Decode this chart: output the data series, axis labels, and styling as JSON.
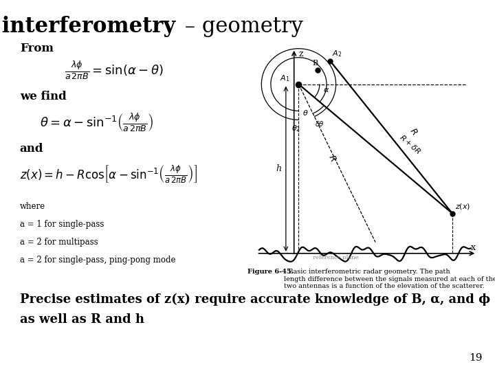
{
  "title_main": "Radar interferometry",
  "title_dash": " – ",
  "title_sub": "geometry",
  "bg_color": "#ffffff",
  "text_color": "#000000",
  "from_label": "From",
  "we_find_label": "we find",
  "and_label": "and",
  "where_lines": [
    "where",
    "a = 1 for single-pass",
    "a = 2 for multipass",
    "a = 2 for single-pass, ping-pong mode"
  ],
  "bottom_text_line1": "Precise estimates of z(x) require accurate knowledge of B, α, and ϕ",
  "bottom_text_line2": "as well as R and h",
  "page_number": "19",
  "eq1": "$\\frac{\\lambda\\phi}{a\\,2\\pi B} = \\sin(\\alpha - \\theta)$",
  "eq2": "$\\theta = \\alpha - \\sin^{-1}\\!\\left(\\frac{\\lambda\\phi}{a\\,2\\pi B}\\right)$",
  "eq3": "$z(x) = h - R\\cos\\!\\left[\\alpha - \\sin^{-1}\\!\\left(\\frac{\\lambda\\phi}{a\\,2\\pi B}\\right)\\right]$",
  "figure_caption_bold": "Figure 6-45.",
  "figure_caption_rest": "  Basic interferometric radar geometry. The path\nlength difference between the signals measured at each of the\ntwo antennas is a function of the elevation of the scatterer."
}
